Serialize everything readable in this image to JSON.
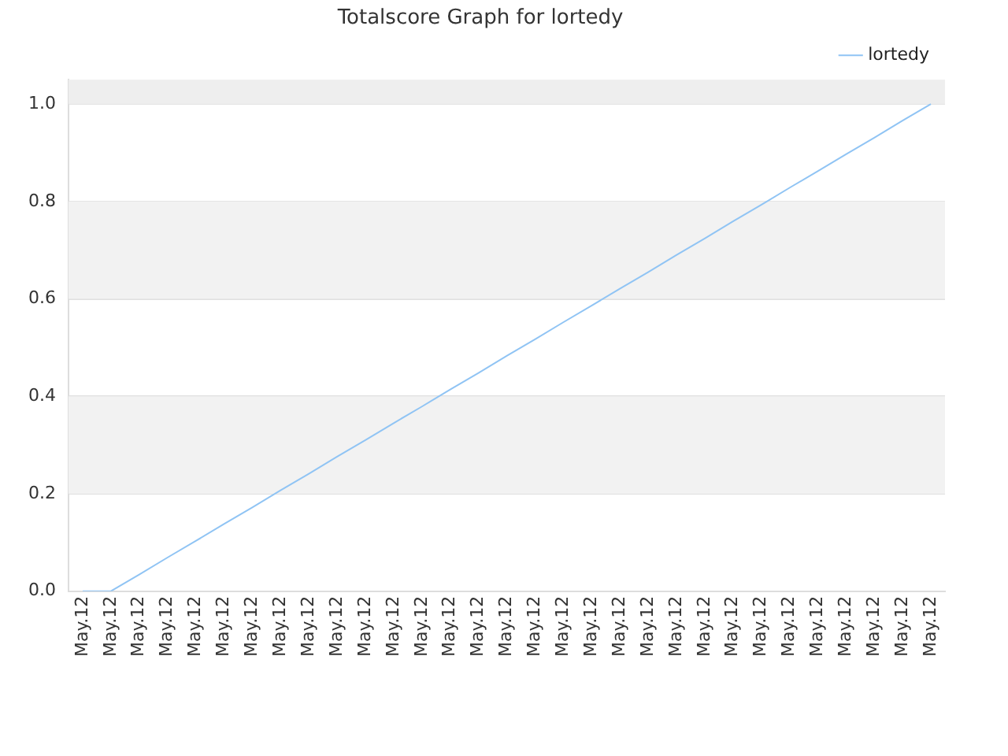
{
  "chart_data": {
    "type": "line",
    "title": "Totalscore Graph for lortedy",
    "categories": [
      "May.12",
      "May.12",
      "May.12",
      "May.12",
      "May.12",
      "May.12",
      "May.12",
      "May.12",
      "May.12",
      "May.12",
      "May.12",
      "May.12",
      "May.12",
      "May.12",
      "May.12",
      "May.12",
      "May.12",
      "May.12",
      "May.12",
      "May.12",
      "May.12",
      "May.12",
      "May.12",
      "May.12",
      "May.12",
      "May.12",
      "May.12",
      "May.12",
      "May.12",
      "May.12",
      "May.12"
    ],
    "series": [
      {
        "name": "lortedy",
        "color": "#90c4f4",
        "values": [
          0,
          0,
          0.034,
          0.069,
          0.103,
          0.138,
          0.172,
          0.207,
          0.241,
          0.276,
          0.31,
          0.345,
          0.379,
          0.414,
          0.448,
          0.483,
          0.517,
          0.552,
          0.586,
          0.621,
          0.655,
          0.69,
          0.724,
          0.759,
          0.793,
          0.828,
          0.862,
          0.897,
          0.931,
          0.966,
          1
        ]
      }
    ],
    "ylim": [
      0,
      1.05
    ],
    "yticks": [
      {
        "value": 0,
        "label": "0.0"
      },
      {
        "value": 0.2,
        "label": "0.2"
      },
      {
        "value": 0.4,
        "label": "0.4"
      },
      {
        "value": 0.6,
        "label": "0.6"
      },
      {
        "value": 0.8,
        "label": "0.8"
      },
      {
        "value": 1,
        "label": "1.0"
      }
    ],
    "bands": [
      {
        "axis": "y",
        "from": 0.2,
        "to": 0.4,
        "color": "#f2f2f2"
      },
      {
        "axis": "y",
        "from": 0.6,
        "to": 0.8,
        "color": "#f2f2f2"
      },
      {
        "axis": "y",
        "from": 1,
        "to": 1.05,
        "color": "#eeeeee"
      }
    ],
    "grid": "y",
    "legend": "top right",
    "marker": "none",
    "line_style": "solid"
  }
}
